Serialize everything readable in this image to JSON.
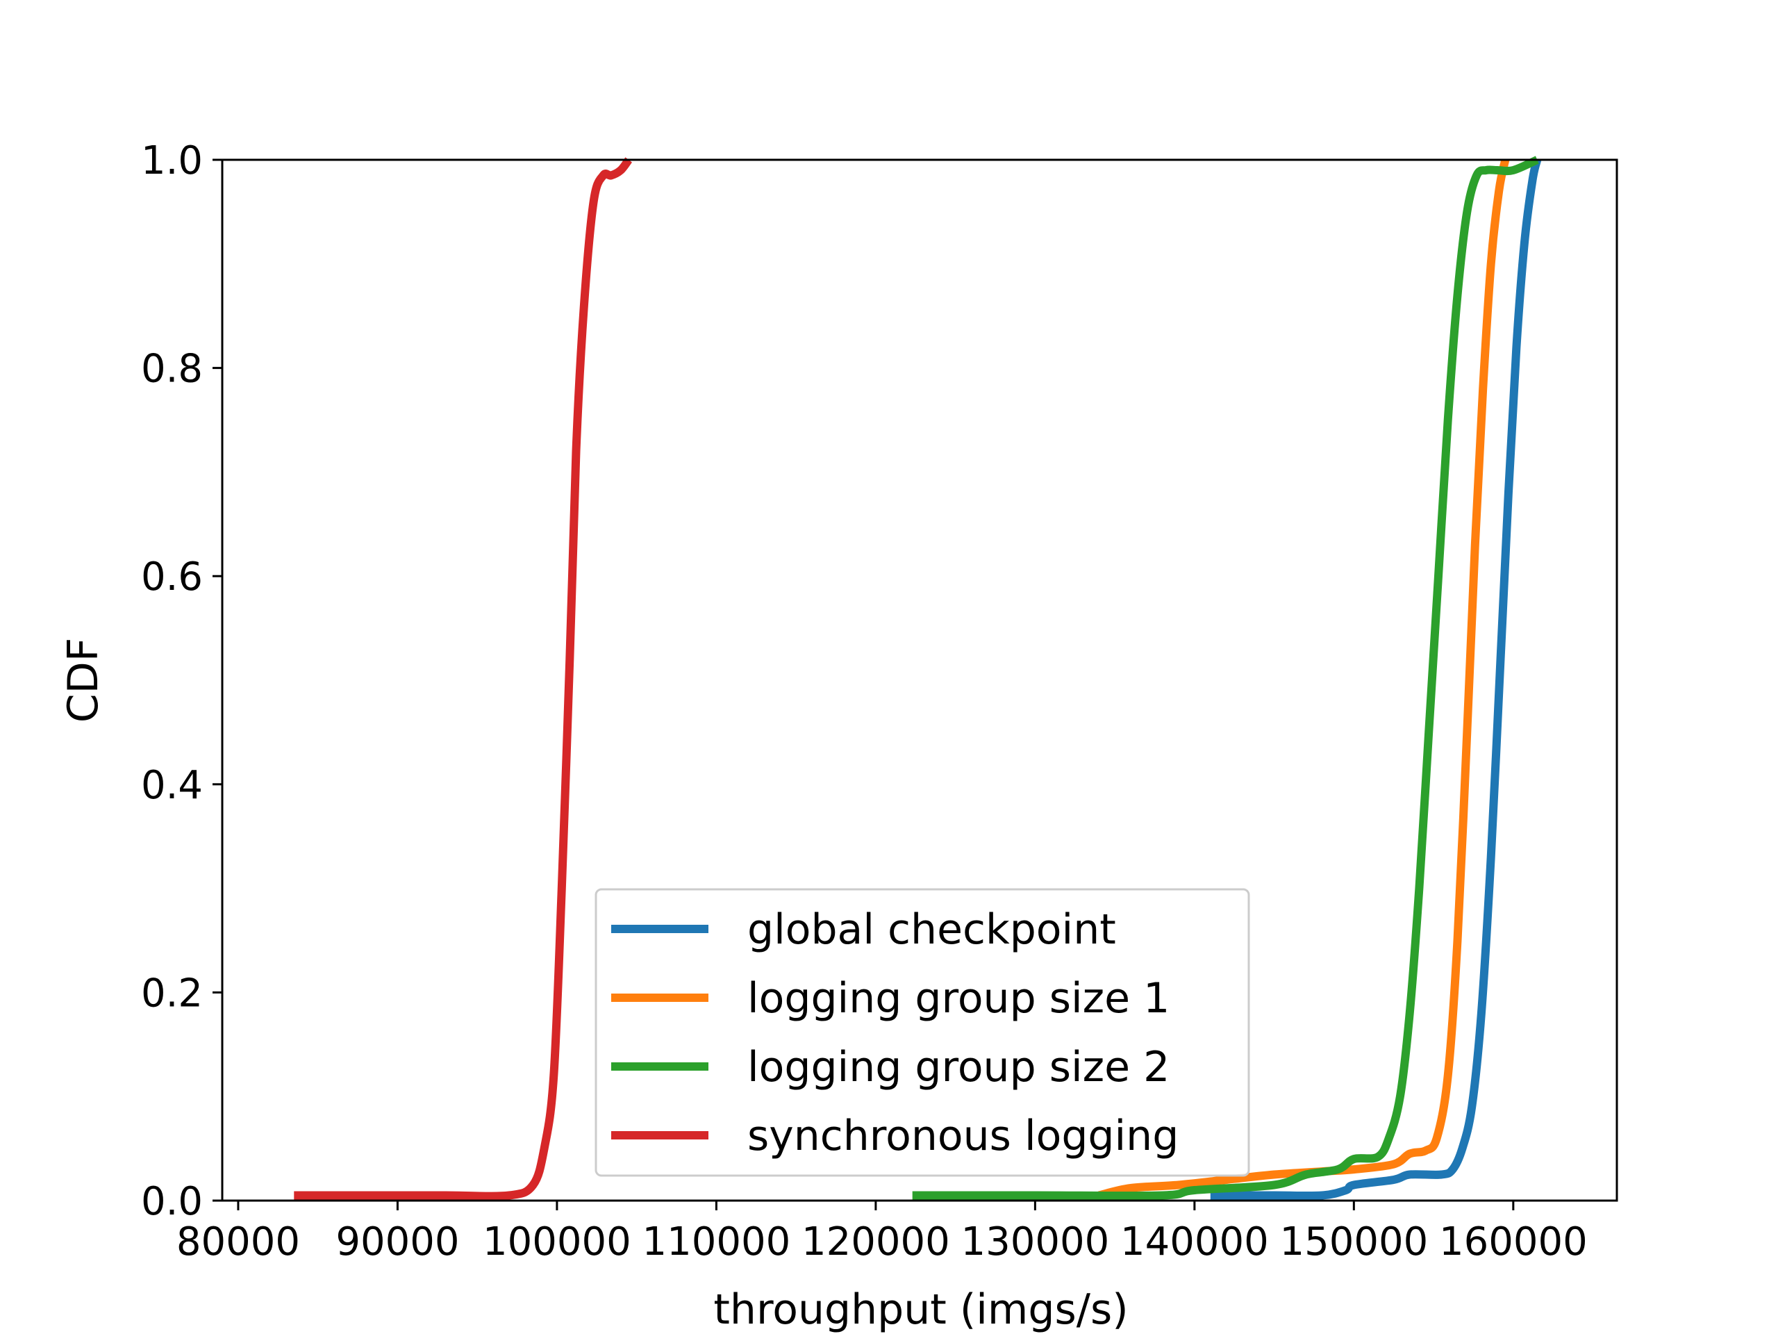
{
  "chart_data": {
    "type": "line",
    "title": "",
    "xlabel": "throughput (imgs/s)",
    "ylabel": "CDF",
    "xlim": [
      79000,
      166500
    ],
    "ylim": [
      0,
      1.0
    ],
    "xticks": [
      80000,
      90000,
      100000,
      110000,
      120000,
      130000,
      140000,
      150000,
      160000
    ],
    "xtick_labels": [
      "80000",
      "90000",
      "100000",
      "110000",
      "120000",
      "130000",
      "140000",
      "150000",
      "160000"
    ],
    "yticks": [
      0.0,
      0.2,
      0.4,
      0.6,
      0.8,
      1.0
    ],
    "ytick_labels": [
      "0.0",
      "0.2",
      "0.4",
      "0.6",
      "0.8",
      "1.0"
    ],
    "grid": false,
    "legend_position": "lower-center",
    "series": [
      {
        "name": "global checkpoint",
        "color": "#1f77b4",
        "x": [
          141000,
          145000,
          148000,
          149500,
          150000,
          152500,
          153500,
          155500,
          156200,
          156800,
          157400,
          158000,
          158600,
          159200,
          159700,
          160200,
          160700,
          161200,
          161500
        ],
        "y": [
          0.005,
          0.005,
          0.005,
          0.01,
          0.015,
          0.02,
          0.025,
          0.025,
          0.03,
          0.05,
          0.09,
          0.18,
          0.33,
          0.52,
          0.68,
          0.82,
          0.92,
          0.98,
          1.0
        ]
      },
      {
        "name": "logging group size 1",
        "color": "#ff7f0e",
        "x": [
          134000,
          136000,
          139000,
          142000,
          145000,
          148000,
          150000,
          152500,
          153500,
          154500,
          155200,
          155900,
          156500,
          157100,
          157600,
          158100,
          158600,
          159100,
          159500
        ],
        "y": [
          0.005,
          0.012,
          0.015,
          0.02,
          0.025,
          0.028,
          0.03,
          0.035,
          0.045,
          0.048,
          0.06,
          0.12,
          0.25,
          0.45,
          0.63,
          0.78,
          0.9,
          0.97,
          1.0
        ]
      },
      {
        "name": "logging group size 2",
        "color": "#2ca02c",
        "x": [
          122300,
          130000,
          138000,
          140000,
          145000,
          147000,
          149000,
          150000,
          151500,
          152200,
          152900,
          153500,
          154100,
          154700,
          155300,
          155900,
          156500,
          157100,
          157700,
          158300,
          159000,
          160000,
          161500
        ],
        "y": [
          0.005,
          0.005,
          0.005,
          0.01,
          0.015,
          0.025,
          0.03,
          0.04,
          0.042,
          0.06,
          0.1,
          0.18,
          0.3,
          0.45,
          0.6,
          0.75,
          0.87,
          0.95,
          0.985,
          0.99,
          0.99,
          0.99,
          1.0
        ]
      },
      {
        "name": "synchronous logging",
        "color": "#d62728",
        "x": [
          83500,
          88000,
          93000,
          97000,
          98500,
          99200,
          99800,
          100300,
          100800,
          101200,
          101700,
          102300,
          102900,
          103400,
          104000,
          104500
        ],
        "y": [
          0.005,
          0.005,
          0.005,
          0.005,
          0.015,
          0.05,
          0.12,
          0.3,
          0.52,
          0.72,
          0.86,
          0.96,
          0.985,
          0.985,
          0.99,
          1.0
        ]
      }
    ]
  }
}
